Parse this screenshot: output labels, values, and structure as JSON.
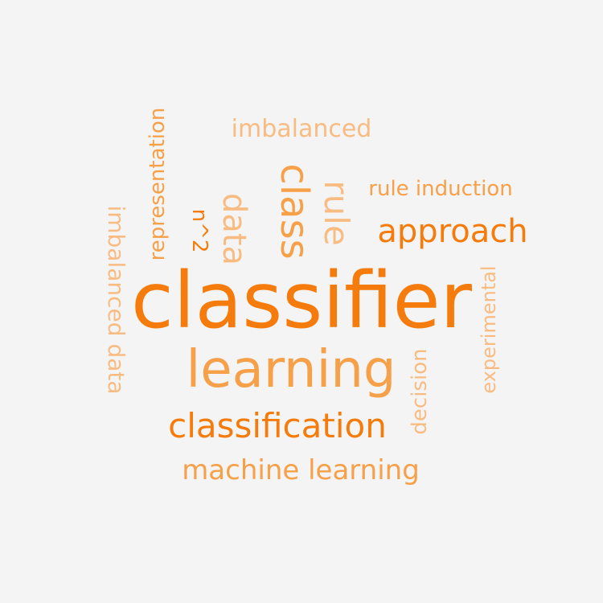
{
  "colors": {
    "background": "#f4f4f4",
    "dark_orange": "#f57c0c",
    "mid_orange": "#f6a04a",
    "light_orange": "#f8bc82"
  },
  "words": [
    {
      "id": "classifier",
      "text": "classifier"
    },
    {
      "id": "learning",
      "text": "learning"
    },
    {
      "id": "classification",
      "text": "classification"
    },
    {
      "id": "machine-learning",
      "text": "machine learning"
    },
    {
      "id": "approach",
      "text": "approach"
    },
    {
      "id": "rule-induction",
      "text": "rule induction"
    },
    {
      "id": "imbalanced",
      "text": "imbalanced"
    },
    {
      "id": "class",
      "text": "class"
    },
    {
      "id": "rule",
      "text": "rule"
    },
    {
      "id": "data",
      "text": "data"
    },
    {
      "id": "n2",
      "text": "n^2"
    },
    {
      "id": "representation",
      "text": "representation"
    },
    {
      "id": "imbalanced-data",
      "text": "imbalanced data"
    },
    {
      "id": "decision",
      "text": "decision"
    },
    {
      "id": "experimental",
      "text": "experimental"
    }
  ]
}
